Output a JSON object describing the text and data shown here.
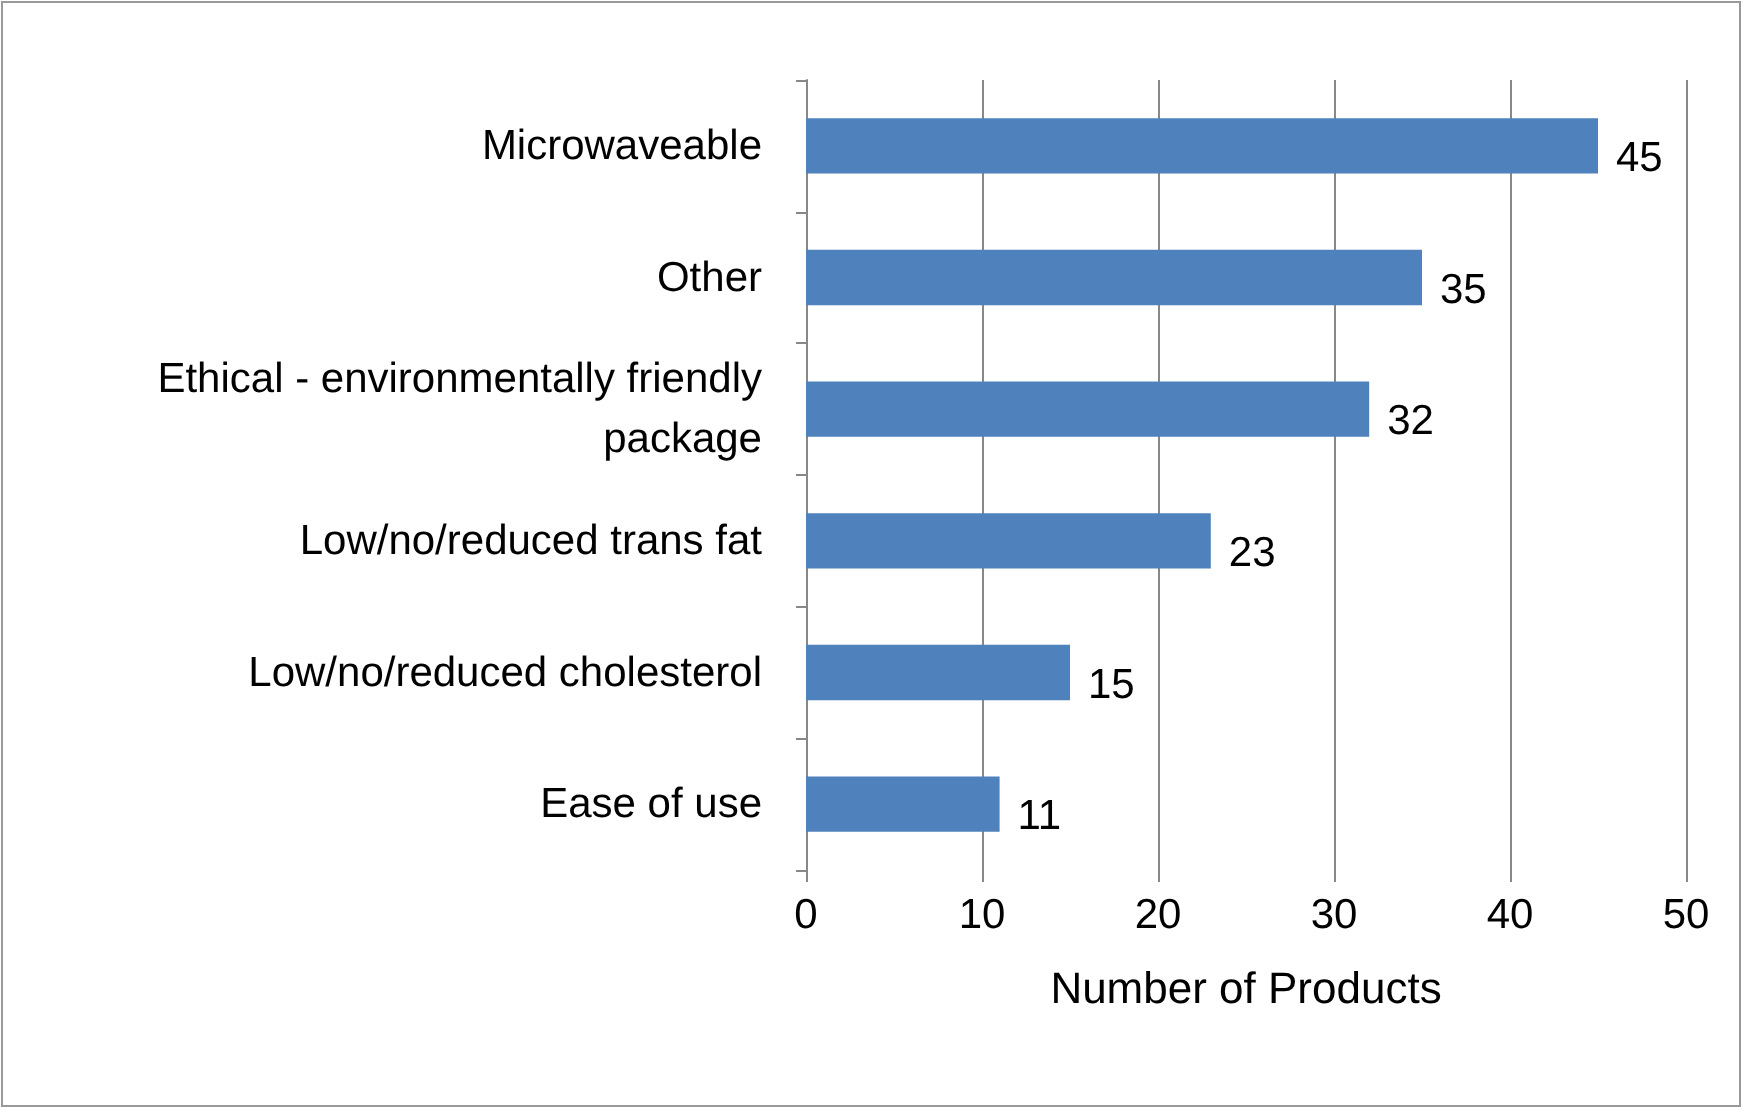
{
  "chart_data": {
    "type": "bar",
    "orientation": "horizontal",
    "xlabel": "Number of Products",
    "categories": [
      "Microwaveable",
      "Other",
      "Ethical - environmentally friendly\npackage",
      "Low/no/reduced trans fat",
      "Low/no/reduced cholesterol",
      "Ease of use"
    ],
    "values": [
      45,
      35,
      32,
      23,
      15,
      11
    ],
    "color": "#4f81bd",
    "xlim": [
      0,
      50
    ],
    "xticks": [
      0,
      10,
      20,
      30,
      40,
      50
    ],
    "grid": "x",
    "data_labels": true
  }
}
